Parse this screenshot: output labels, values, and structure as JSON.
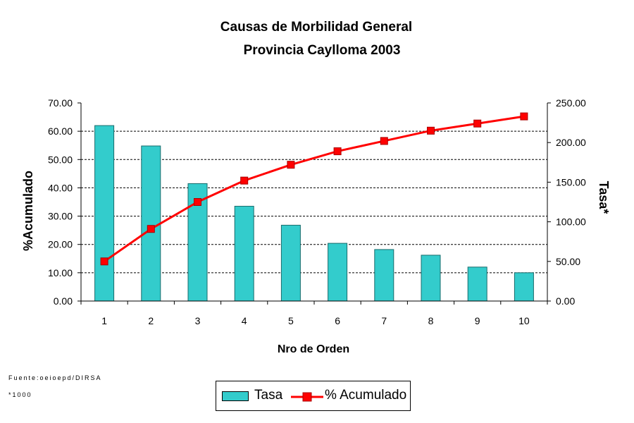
{
  "header": {
    "title": "Causas de Morbilidad General",
    "subtitle": "Provincia Caylloma 2003"
  },
  "notes": {
    "source": "Fuente:oeioepd/DIRSA",
    "footnote": "*1000"
  },
  "legend": {
    "bar_label": "Tasa",
    "line_label": "% Acumulado"
  },
  "colors": {
    "bar_fill": "#33CCCC",
    "line": "#FF0000"
  },
  "chart_data": {
    "type": "bar",
    "title": "Causas de Morbilidad General",
    "subtitle": "Provincia Caylloma 2003",
    "xlabel": "Nro de Orden",
    "ylabel_left": "%Acumulado",
    "ylabel_right": "Tasa*",
    "categories": [
      "1",
      "2",
      "3",
      "4",
      "5",
      "6",
      "7",
      "8",
      "9",
      "10"
    ],
    "left_ticks": [
      "0.00",
      "10.00",
      "20.00",
      "30.00",
      "40.00",
      "50.00",
      "60.00",
      "70.00"
    ],
    "right_ticks": [
      "0.00",
      "50.00",
      "100.00",
      "150.00",
      "200.00",
      "250.00"
    ],
    "ylim_left": [
      0,
      70
    ],
    "ylim_right": [
      0,
      250
    ],
    "grid": true,
    "legend_position": "bottom-center",
    "series": [
      {
        "name": "Tasa",
        "type": "bar",
        "axis": "left",
        "values": [
          62.0,
          54.8,
          41.5,
          33.5,
          26.8,
          20.4,
          18.2,
          16.2,
          12.0,
          10.0
        ]
      },
      {
        "name": "% Acumulado",
        "type": "line",
        "axis": "right",
        "values": [
          50.0,
          91.0,
          125.0,
          152.0,
          172.0,
          189.0,
          202.0,
          215.0,
          224.0,
          233.0
        ]
      }
    ]
  }
}
